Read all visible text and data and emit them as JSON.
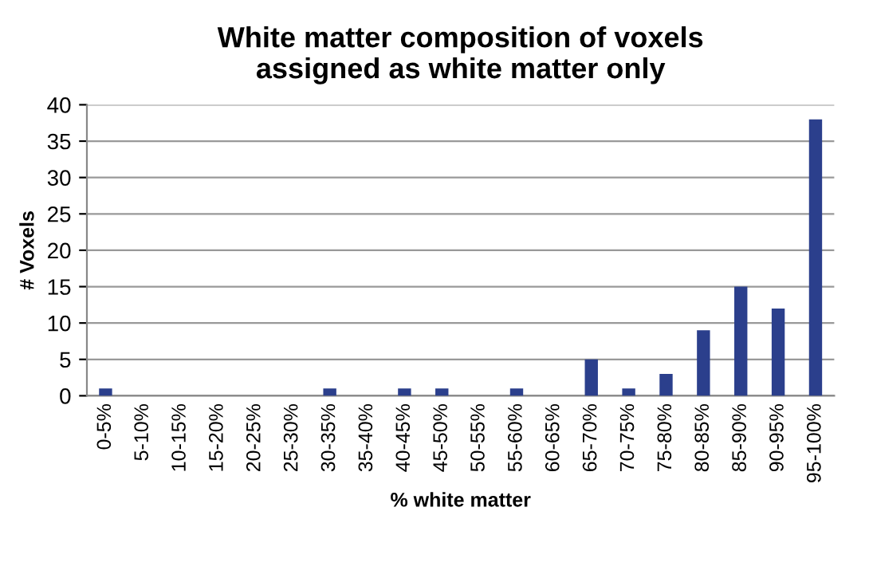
{
  "chart_data": {
    "type": "bar",
    "title": "White matter composition of voxels\nassigned as white matter only",
    "xlabel": "% white matter",
    "ylabel": "# Voxels",
    "categories": [
      "0-5%",
      "5-10%",
      "10-15%",
      "15-20%",
      "20-25%",
      "25-30%",
      "30-35%",
      "35-40%",
      "40-45%",
      "45-50%",
      "50-55%",
      "55-60%",
      "60-65%",
      "65-70%",
      "70-75%",
      "75-80%",
      "80-85%",
      "85-90%",
      "90-95%",
      "95-100%"
    ],
    "values": [
      1,
      0,
      0,
      0,
      0,
      0,
      1,
      0,
      1,
      1,
      0,
      1,
      0,
      5,
      1,
      3,
      9,
      15,
      12,
      38
    ],
    "color": "#2b3f8c",
    "ylim": [
      0,
      40
    ],
    "yticks": [
      0,
      5,
      10,
      15,
      20,
      25,
      30,
      35,
      40
    ],
    "grid": "y"
  }
}
